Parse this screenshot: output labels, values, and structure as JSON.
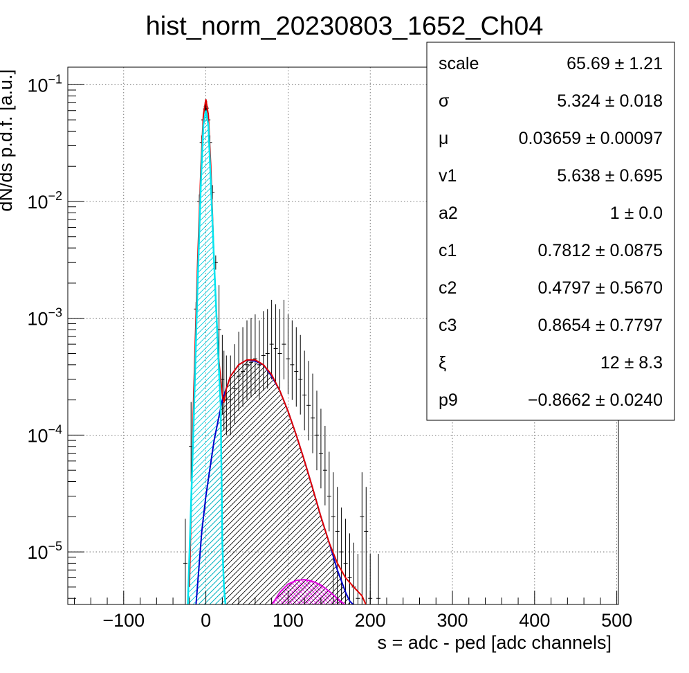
{
  "chart_data": {
    "type": "histogram",
    "title": "hist_norm_20230803_1652_Ch04",
    "xlabel": "s = adc - ped [adc channels]",
    "ylabel": "dN/ds p.d.f. [a.u.]",
    "xlim": [
      -168,
      502
    ],
    "ylim_log10": [
      -5.45,
      -0.85
    ],
    "y_scale": "log",
    "grid": true,
    "x_ticks": [
      {
        "value": -100,
        "label": "−100"
      },
      {
        "value": 0,
        "label": "0"
      },
      {
        "value": 100,
        "label": "100"
      },
      {
        "value": 200,
        "label": "200"
      },
      {
        "value": 300,
        "label": "300"
      },
      {
        "value": 400,
        "label": "400"
      },
      {
        "value": 500,
        "label": "500"
      }
    ],
    "y_ticks": [
      {
        "exp": -1,
        "base": "10",
        "sup": "−1"
      },
      {
        "exp": -2,
        "base": "10",
        "sup": "−2"
      },
      {
        "exp": -3,
        "base": "10",
        "sup": "−3"
      },
      {
        "exp": -4,
        "base": "10",
        "sup": "−4"
      },
      {
        "exp": -5,
        "base": "10",
        "sup": "−5"
      }
    ],
    "series": [
      {
        "role": "data",
        "color": "#000000",
        "x": [
          -25,
          -18,
          -12,
          -8,
          -5,
          -3,
          -1,
          0,
          1,
          3,
          5,
          8,
          12,
          16,
          20,
          22,
          25,
          30,
          35,
          40,
          45,
          50,
          55,
          60,
          65,
          70,
          75,
          80,
          85,
          90,
          95,
          100,
          105,
          110,
          115,
          120,
          125,
          130,
          135,
          140,
          145,
          150,
          155,
          160,
          165,
          170,
          175,
          180,
          185,
          190,
          195,
          200,
          210
        ],
        "y": [
          8e-06,
          8e-05,
          0.0012,
          0.01,
          0.032,
          0.05,
          0.062,
          0.065,
          0.063,
          0.05,
          0.032,
          0.012,
          0.003,
          0.0008,
          0.0003,
          0.00022,
          0.0002,
          0.0002,
          0.00025,
          0.00032,
          0.00035,
          0.0004,
          0.00042,
          0.00045,
          0.0004,
          0.00048,
          0.0005,
          0.0006,
          0.00055,
          0.0005,
          0.0006,
          0.00045,
          0.0004,
          0.00035,
          0.0003,
          0.00022,
          0.00018,
          0.00014,
          0.0001,
          7e-05,
          5e-05,
          3e-05,
          2e-05,
          1.5e-05,
          1e-05,
          8e-06,
          6e-06,
          5e-06,
          4e-06,
          2e-05,
          1.5e-05,
          4e-06,
          4e-06
        ]
      },
      {
        "role": "total-fit",
        "color": "#e00000",
        "x": [
          -20,
          -15,
          -10,
          -6,
          -3,
          0,
          3,
          6,
          10,
          15,
          18,
          20,
          22,
          25,
          30,
          40,
          50,
          60,
          70,
          80,
          90,
          100,
          110,
          120,
          130,
          140,
          150,
          160,
          170,
          180,
          190,
          195
        ],
        "y": [
          5e-06,
          0.0002,
          0.003,
          0.02,
          0.055,
          0.075,
          0.055,
          0.02,
          0.003,
          0.0005,
          0.0003,
          0.00022,
          0.00019,
          0.00025,
          0.00032,
          0.0004,
          0.00044,
          0.00044,
          0.0004,
          0.00033,
          0.00024,
          0.00016,
          0.0001,
          6e-05,
          3.5e-05,
          2e-05,
          1.2e-05,
          8e-06,
          6e-06,
          5e-06,
          4.2e-06,
          3.5e-06
        ]
      },
      {
        "role": "pedestal",
        "color": "#00e5f0",
        "x": [
          -22,
          -15,
          -10,
          -6,
          -3,
          0,
          3,
          6,
          10,
          15,
          18,
          20,
          22,
          24
        ],
        "y": [
          3.5e-06,
          0.00012,
          0.002,
          0.015,
          0.045,
          0.06,
          0.045,
          0.015,
          0.003,
          0.0005,
          0.00018,
          1.2e-05,
          5e-06,
          3.5e-06
        ]
      },
      {
        "role": "single-pe",
        "color": "#0000cc",
        "x": [
          -12,
          -5,
          0,
          10,
          20,
          30,
          40,
          50,
          60,
          70,
          80,
          90,
          100,
          110,
          120,
          130,
          140,
          150,
          160,
          170,
          175,
          180
        ],
        "y": [
          3.5e-06,
          1.5e-05,
          3e-05,
          9e-05,
          0.0002,
          0.00032,
          0.0004,
          0.00044,
          0.00043,
          0.0004,
          0.00032,
          0.00024,
          0.00016,
          0.0001,
          6e-05,
          3.5e-05,
          2e-05,
          1.2e-05,
          7e-06,
          4.5e-06,
          3.8e-06,
          3.5e-06
        ]
      },
      {
        "role": "double-pe",
        "color": "#e000e0",
        "x": [
          80,
          90,
          100,
          110,
          120,
          130,
          140,
          150,
          160,
          170
        ],
        "y": [
          3.5e-06,
          4.5e-06,
          5.3e-06,
          5.7e-06,
          5.8e-06,
          5.6e-06,
          5.2e-06,
          4.6e-06,
          4e-06,
          3.5e-06
        ]
      }
    ]
  },
  "stats_box": {
    "rows": [
      {
        "label": "scale",
        "value": "65.69 ± 1.21"
      },
      {
        "label": "σ",
        "value": "5.324 ± 0.018"
      },
      {
        "label": "μ",
        "value": "0.03659 ± 0.00097"
      },
      {
        "label": "v1",
        "value": "5.638 ± 0.695"
      },
      {
        "label": "a2",
        "value": "1 ± 0.0"
      },
      {
        "label": "c1",
        "value": "0.7812 ± 0.0875"
      },
      {
        "label": "c2",
        "value": "0.4797 ± 0.5670"
      },
      {
        "label": "c3",
        "value": "0.8654 ± 0.7797"
      },
      {
        "label": "ξ",
        "value": "12 ± 8.3"
      },
      {
        "label": "p9",
        "value": "−0.8662 ± 0.0240"
      }
    ]
  }
}
